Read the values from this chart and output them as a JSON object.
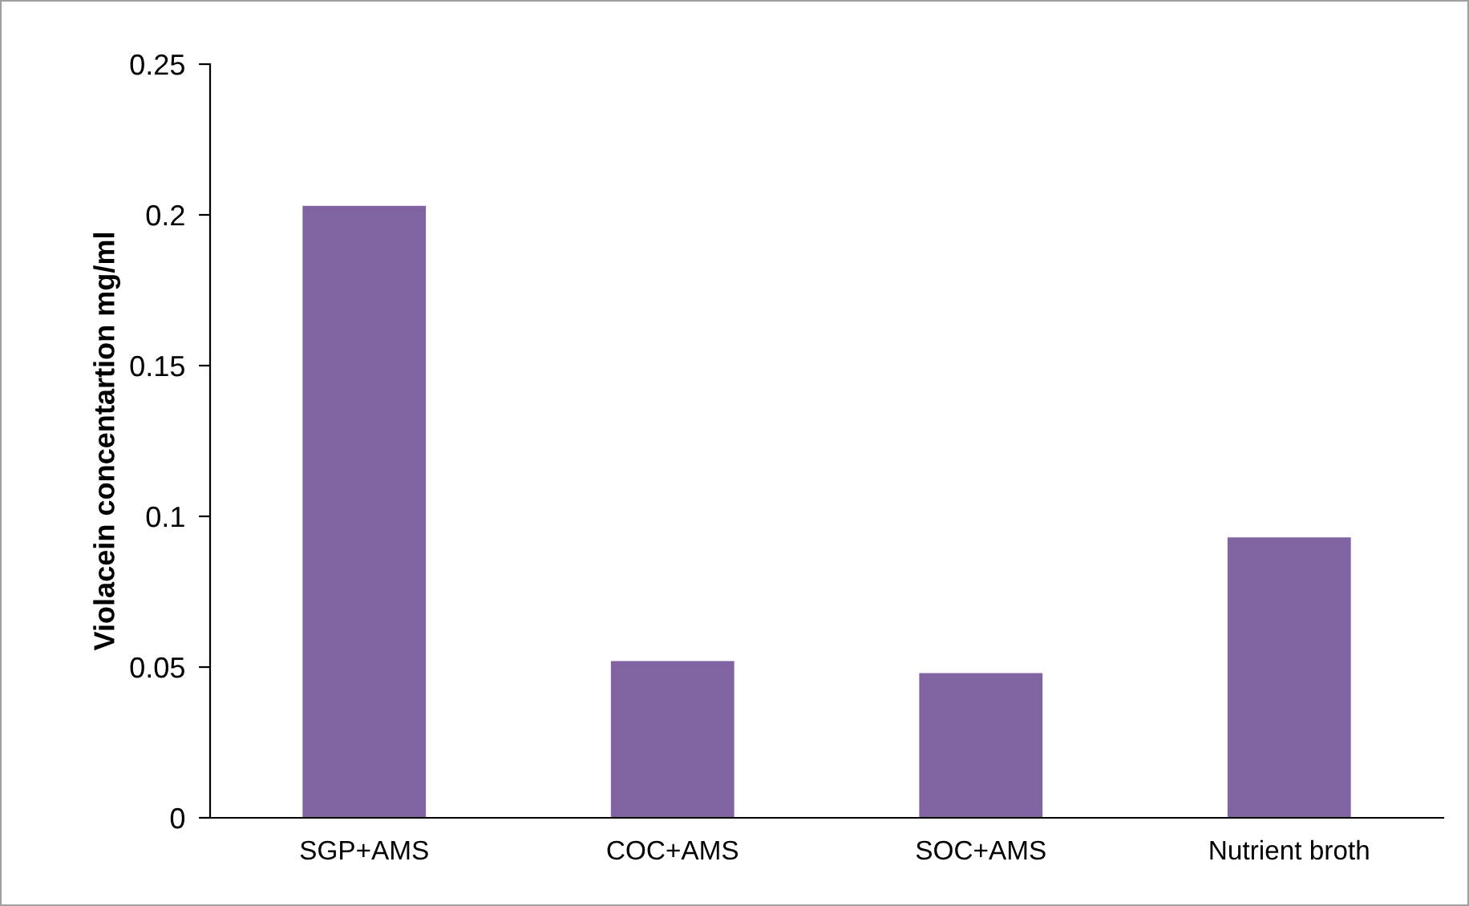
{
  "chart_data": {
    "type": "bar",
    "ylabel": "Violacein concentartion mg/ml",
    "categories": [
      "SGP+AMS",
      "COC+AMS",
      "SOC+AMS",
      "Nutrient broth"
    ],
    "values": [
      0.203,
      0.052,
      0.048,
      0.093
    ],
    "color": "#8064a2",
    "ylim": [
      0,
      0.25
    ],
    "yticks": [
      0,
      0.05,
      0.1,
      0.15,
      0.2,
      0.25
    ],
    "grid": false,
    "legend": false
  }
}
